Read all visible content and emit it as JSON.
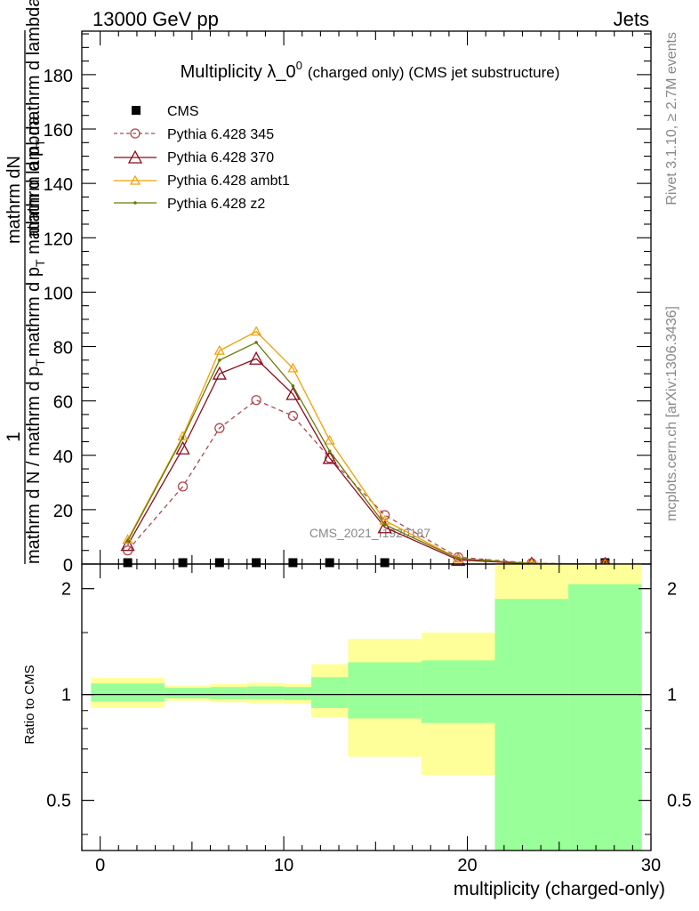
{
  "header": {
    "left": "13000 GeV pp",
    "right": "Jets"
  },
  "side_labels": {
    "rivet": "Rivet 3.1.10, ≥ 2.7M events",
    "mcplots": "mcplots.cern.ch [arXiv:1306.3436]"
  },
  "watermark": "CMS_2021_I1920187",
  "chart_data": [
    {
      "type": "line",
      "title_main": "Multiplicity λ_0",
      "title_sup": "0",
      "title_tail": "(charged only) (CMS jet substructure)",
      "ylabel": {
        "frac_numerator": "1",
        "frac_denominator": "mathrm d N / mathrm d p",
        "frac_denominator_sub": "T",
        "frac_denominator_tail": "mathrm d p",
        "frac_denominator_tail_sub": "T",
        "frac_denominator_end": "mathrm d lambda",
        "num_num": "mathrm d",
        "num_N": "N",
        "num_den": "mathrm d p",
        "num_den_sub": "T",
        "num_den_end": "mathrm d lambda"
      },
      "xlim": [
        -1,
        30
      ],
      "ylim": [
        0,
        196
      ],
      "yticks": [
        0,
        20,
        40,
        60,
        80,
        100,
        120,
        140,
        160,
        180
      ],
      "ytick_labels": [
        "0",
        "20",
        "40",
        "60",
        "80",
        "100",
        "120",
        "140",
        "160",
        "180"
      ],
      "x": [
        1.5,
        4.5,
        6.5,
        8.5,
        10.5,
        12.5,
        15.5,
        19.5,
        23.5,
        27.5
      ],
      "series": [
        {
          "name": "CMS",
          "color": "#000000",
          "marker": "square",
          "values": [
            0.5,
            0.5,
            0.5,
            0.5,
            0.5,
            0.5,
            0.5,
            0,
            0,
            0.5
          ]
        },
        {
          "name": "Pythia 6.428 345",
          "color": "#b0474f",
          "marker": "circle",
          "dashed": true,
          "values": [
            5,
            28.5,
            50,
            60.3,
            54.5,
            39,
            18,
            2.5,
            0.3,
            0
          ]
        },
        {
          "name": "Pythia 6.428 370",
          "color": "#8b0a1a",
          "marker": "triangle",
          "values": [
            7,
            42.5,
            70,
            75.5,
            62.5,
            39,
            13.5,
            1.5,
            0.1,
            0
          ]
        },
        {
          "name": "Pythia 6.428 ambt1",
          "color": "#f0a000",
          "marker": "triangle-small",
          "values": [
            9,
            47,
            78.5,
            85.5,
            72,
            45.5,
            16,
            2,
            0.2,
            0
          ]
        },
        {
          "name": "Pythia 6.428 z2",
          "color": "#6b7a0a",
          "marker": "dot",
          "values": [
            8.5,
            46.5,
            75,
            81.5,
            65.5,
            41.5,
            14.5,
            2,
            0.2,
            0
          ]
        }
      ]
    },
    {
      "type": "area",
      "ylabel": "Ratio to CMS",
      "xlabel": "multiplicity (charged-only)",
      "xlim": [
        -1,
        30
      ],
      "ylim": [
        0.36,
        2.35
      ],
      "xticks": [
        0,
        10,
        20,
        30
      ],
      "xtick_labels": [
        "0",
        "10",
        "20",
        "30"
      ],
      "yticks": [
        0.5,
        1,
        2
      ],
      "ytick_labels": [
        "0.5",
        "1",
        "2"
      ],
      "reference": 1,
      "yellow_color": "#ffff99",
      "green_color": "#99ff99",
      "bins": [
        {
          "x0": -0.5,
          "x1": 3.5,
          "y_lo": 0.915,
          "y_hi": 1.115,
          "g_lo": 0.955,
          "g_hi": 1.075
        },
        {
          "x0": 3.5,
          "x1": 6,
          "y_lo": 0.96,
          "y_hi": 1.06,
          "g_lo": 0.975,
          "g_hi": 1.045
        },
        {
          "x0": 6,
          "x1": 8,
          "y_lo": 0.95,
          "y_hi": 1.07,
          "g_lo": 0.97,
          "g_hi": 1.05
        },
        {
          "x0": 8,
          "x1": 10,
          "y_lo": 0.945,
          "y_hi": 1.08,
          "g_lo": 0.97,
          "g_hi": 1.055
        },
        {
          "x0": 10,
          "x1": 11.5,
          "y_lo": 0.94,
          "y_hi": 1.07,
          "g_lo": 0.965,
          "g_hi": 1.05
        },
        {
          "x0": 11.5,
          "x1": 13.5,
          "y_lo": 0.86,
          "y_hi": 1.22,
          "g_lo": 0.915,
          "g_hi": 1.12
        },
        {
          "x0": 13.5,
          "x1": 17.5,
          "y_lo": 0.665,
          "y_hi": 1.44,
          "g_lo": 0.855,
          "g_hi": 1.235
        },
        {
          "x0": 17.5,
          "x1": 21.5,
          "y_lo": 0.59,
          "y_hi": 1.5,
          "g_lo": 0.83,
          "g_hi": 1.25
        },
        {
          "x0": 21.5,
          "x1": 25.5,
          "y_lo": 0.36,
          "y_hi": 2.35,
          "g_lo": 0.36,
          "g_hi": 1.87
        },
        {
          "x0": 25.5,
          "x1": 29.5,
          "y_lo": 0.36,
          "y_hi": 2.35,
          "g_lo": 0.36,
          "g_hi": 2.06
        }
      ]
    }
  ]
}
